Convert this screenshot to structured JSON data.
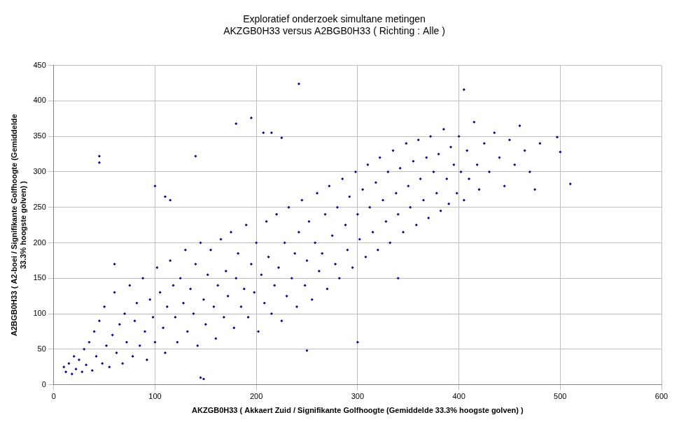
{
  "chart_data": {
    "type": "scatter",
    "title": [
      "Exploratief onderzoek simultane metingen",
      "AKZGB0H33 versus A2BGB0H33 ( Richting : Alle )"
    ],
    "x_label": "AKZGB0H33 ( Akkaert Zuid / Signifikante Golfhoogte (Gemiddelde 33.3% hoogste golven) )",
    "y_label": [
      "A2BGB0H33 ( A2-boei / Signifikante Golfhoogte (Gemiddelde",
      "33.3% hoogste golven) )"
    ],
    "color": "#000080",
    "marker": "diamond",
    "grid": true,
    "xlim": [
      0,
      600
    ],
    "xticks": [
      0,
      100,
      200,
      300,
      400,
      500,
      600
    ],
    "ylim": [
      0,
      450
    ],
    "yticks": [
      0,
      50,
      100,
      150,
      200,
      250,
      300,
      350,
      400,
      450
    ],
    "x": [
      10,
      12,
      15,
      18,
      20,
      22,
      25,
      28,
      30,
      32,
      35,
      38,
      40,
      42,
      45,
      48,
      50,
      52,
      55,
      58,
      60,
      62,
      65,
      68,
      70,
      72,
      75,
      78,
      80,
      82,
      85,
      88,
      90,
      92,
      95,
      98,
      100,
      102,
      105,
      108,
      110,
      112,
      115,
      118,
      120,
      122,
      125,
      128,
      130,
      132,
      135,
      138,
      140,
      142,
      145,
      148,
      150,
      152,
      155,
      158,
      160,
      162,
      165,
      168,
      170,
      172,
      175,
      178,
      180,
      182,
      185,
      188,
      190,
      192,
      195,
      198,
      200,
      202,
      205,
      208,
      210,
      212,
      215,
      218,
      220,
      222,
      225,
      228,
      230,
      232,
      235,
      238,
      240,
      242,
      245,
      248,
      250,
      252,
      255,
      258,
      260,
      262,
      265,
      268,
      270,
      272,
      275,
      278,
      280,
      282,
      285,
      288,
      290,
      292,
      295,
      298,
      300,
      302,
      305,
      308,
      310,
      312,
      315,
      318,
      320,
      322,
      325,
      328,
      330,
      332,
      335,
      338,
      340,
      342,
      345,
      348,
      350,
      352,
      355,
      358,
      360,
      362,
      365,
      368,
      370,
      372,
      375,
      378,
      380,
      382,
      385,
      388,
      390,
      392,
      395,
      398,
      400,
      402,
      405,
      408,
      410,
      415,
      418,
      420,
      425,
      430,
      435,
      440,
      445,
      450,
      455,
      460,
      465,
      470,
      475,
      480,
      45,
      45,
      242,
      405,
      510,
      497,
      500,
      180,
      195,
      207,
      215,
      225,
      140,
      100,
      110,
      115,
      145,
      148,
      250,
      300,
      340,
      60
    ],
    "values": [
      25,
      18,
      30,
      15,
      40,
      22,
      35,
      18,
      50,
      28,
      60,
      20,
      75,
      40,
      90,
      30,
      110,
      55,
      25,
      70,
      130,
      45,
      85,
      30,
      100,
      60,
      140,
      40,
      90,
      115,
      55,
      150,
      75,
      35,
      120,
      95,
      60,
      165,
      130,
      80,
      45,
      110,
      175,
      140,
      95,
      60,
      150,
      115,
      190,
      75,
      135,
      100,
      170,
      55,
      200,
      120,
      85,
      155,
      190,
      110,
      65,
      140,
      205,
      95,
      160,
      125,
      215,
      80,
      150,
      185,
      110,
      135,
      225,
      95,
      170,
      130,
      200,
      75,
      155,
      115,
      230,
      180,
      100,
      140,
      240,
      165,
      90,
      200,
      125,
      250,
      150,
      185,
      110,
      215,
      260,
      140,
      175,
      230,
      120,
      200,
      270,
      160,
      185,
      240,
      135,
      280,
      210,
      170,
      250,
      150,
      290,
      225,
      190,
      265,
      165,
      300,
      240,
      205,
      275,
      180,
      310,
      250,
      215,
      285,
      190,
      320,
      260,
      230,
      300,
      200,
      330,
      270,
      240,
      305,
      215,
      340,
      280,
      250,
      315,
      225,
      345,
      290,
      260,
      320,
      235,
      350,
      300,
      270,
      325,
      245,
      360,
      290,
      255,
      335,
      310,
      270,
      350,
      300,
      260,
      330,
      290,
      370,
      310,
      275,
      340,
      300,
      355,
      320,
      280,
      345,
      310,
      365,
      330,
      300,
      275,
      340,
      322,
      313,
      424,
      416,
      283,
      349,
      328,
      368,
      376,
      355,
      355,
      348,
      322,
      280,
      265,
      260,
      10,
      8,
      48,
      60,
      150,
      170
    ]
  }
}
